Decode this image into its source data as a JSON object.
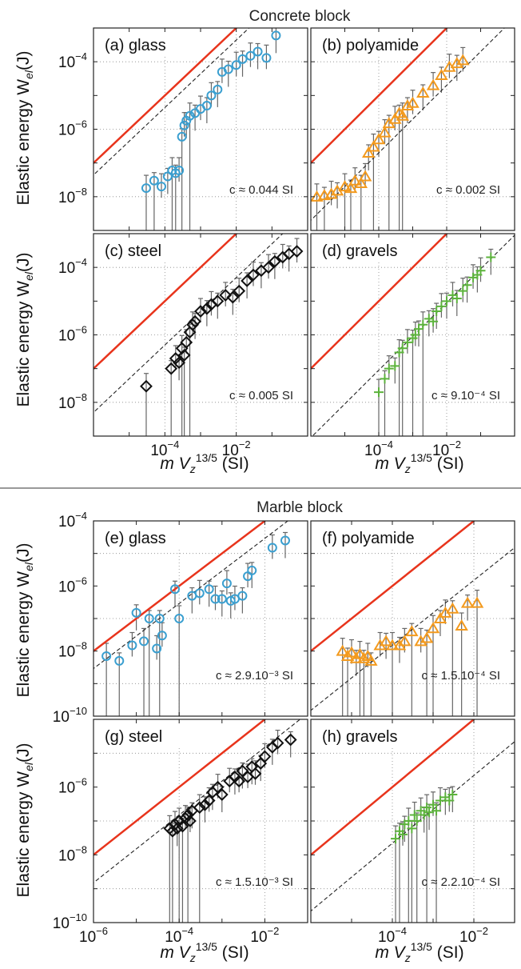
{
  "sections": [
    {
      "title": "Concrete block",
      "xlabel_main": "m V",
      "xlabel_sub": "z",
      "xlabel_sup": "13/5",
      "xlabel_unit": " (SI)"
    },
    {
      "title": "Marble block",
      "xlabel_main": "m V",
      "xlabel_sub": "z",
      "xlabel_sup": "13/5",
      "xlabel_unit": " (SI)"
    }
  ],
  "ylabel": {
    "main": "Elastic energy W",
    "sub": "el",
    "unit": "(J)"
  },
  "colors": {
    "fit_red": "#e8341c",
    "glass": "#3a9fd0",
    "polyamide": "#f39a1e",
    "steel": "#111111",
    "gravels": "#5cb33c",
    "error_bar": "#666666"
  },
  "chart_data": [
    {
      "panel": "(a) glass",
      "type": "scatter",
      "marker": "circle",
      "color": "#3a9fd0",
      "xlog": true,
      "ylog": true,
      "xlim": [
        1e-06,
        1
      ],
      "ylim": [
        1e-09,
        0.001
      ],
      "annotation": "c ≈ 0.044 SI",
      "red_line_prefactor": 0.1,
      "dashed_line_prefactor": 0.044,
      "points": [
        [
          3e-05,
          1.8e-08
        ],
        [
          5e-05,
          3e-08
        ],
        [
          8e-05,
          2e-08
        ],
        [
          0.00012,
          4e-08
        ],
        [
          0.00016,
          6e-08
        ],
        [
          0.0002,
          5e-08
        ],
        [
          0.00025,
          6e-08
        ],
        [
          0.0003,
          6e-07
        ],
        [
          0.00035,
          1.3e-06
        ],
        [
          0.0004,
          1.8e-06
        ],
        [
          0.0005,
          2.5e-06
        ],
        [
          0.0007,
          3e-06
        ],
        [
          0.001,
          4e-06
        ],
        [
          0.0015,
          5e-06
        ],
        [
          0.002,
          1e-05
        ],
        [
          0.003,
          1.5e-05
        ],
        [
          0.004,
          5e-05
        ],
        [
          0.006,
          6e-05
        ],
        [
          0.01,
          8e-05
        ],
        [
          0.015,
          0.00012
        ],
        [
          0.025,
          0.00015
        ],
        [
          0.04,
          0.0002
        ],
        [
          0.07,
          0.00013
        ],
        [
          0.13,
          0.0006
        ]
      ]
    },
    {
      "panel": "(b) polyamide",
      "type": "scatter",
      "marker": "triangle",
      "color": "#f39a1e",
      "xlog": true,
      "ylog": true,
      "xlim": [
        1e-06,
        1
      ],
      "ylim": [
        1e-09,
        0.001
      ],
      "annotation": "c ≈ 0.002 SI",
      "red_line_prefactor": 0.1,
      "dashed_line_prefactor": 0.002,
      "points": [
        [
          1.5e-06,
          1e-08
        ],
        [
          2.5e-06,
          1.1e-08
        ],
        [
          4e-06,
          1.2e-08
        ],
        [
          6e-06,
          1.5e-08
        ],
        [
          1e-05,
          2e-08
        ],
        [
          1.5e-05,
          1.8e-08
        ],
        [
          2e-05,
          3e-08
        ],
        [
          3e-05,
          2.5e-08
        ],
        [
          4e-05,
          4e-08
        ],
        [
          5e-05,
          2e-07
        ],
        [
          7e-05,
          3e-07
        ],
        [
          0.0001,
          5e-07
        ],
        [
          0.00015,
          8e-07
        ],
        [
          0.0002,
          1.5e-06
        ],
        [
          0.0003,
          2e-06
        ],
        [
          0.0004,
          3e-06
        ],
        [
          0.0005,
          2.5e-06
        ],
        [
          0.0007,
          5e-06
        ],
        [
          0.001,
          6e-06
        ],
        [
          0.002,
          1.2e-05
        ],
        [
          0.004,
          2e-05
        ],
        [
          0.007,
          4e-05
        ],
        [
          0.012,
          7e-05
        ],
        [
          0.02,
          9e-05
        ],
        [
          0.03,
          0.00011
        ]
      ]
    },
    {
      "panel": "(c) steel",
      "type": "scatter",
      "marker": "diamond",
      "color": "#111111",
      "xlog": true,
      "ylog": true,
      "xlim": [
        1e-06,
        1
      ],
      "ylim": [
        1e-09,
        0.001
      ],
      "annotation": "c ≈ 0.005 SI",
      "red_line_prefactor": 0.1,
      "dashed_line_prefactor": 0.005,
      "points": [
        [
          3e-05,
          3e-08
        ],
        [
          0.00015,
          1e-07
        ],
        [
          0.0002,
          2e-07
        ],
        [
          0.00025,
          1.5e-07
        ],
        [
          0.0003,
          4e-07
        ],
        [
          0.00035,
          2.5e-07
        ],
        [
          0.0004,
          6e-07
        ],
        [
          0.0005,
          1.2e-06
        ],
        [
          0.0006,
          2e-06
        ],
        [
          0.0007,
          2.5e-06
        ],
        [
          0.001,
          5e-06
        ],
        [
          0.0015,
          6e-06
        ],
        [
          0.002,
          8e-06
        ],
        [
          0.003,
          1e-05
        ],
        [
          0.005,
          1.5e-05
        ],
        [
          0.008,
          1.3e-05
        ],
        [
          0.012,
          2e-05
        ],
        [
          0.02,
          4e-05
        ],
        [
          0.03,
          6e-05
        ],
        [
          0.05,
          8e-05
        ],
        [
          0.08,
          0.0001
        ],
        [
          0.12,
          0.00015
        ],
        [
          0.2,
          0.0002
        ],
        [
          0.3,
          0.00025
        ],
        [
          0.5,
          0.0003
        ]
      ]
    },
    {
      "panel": "(d) gravels",
      "type": "scatter",
      "marker": "plus",
      "color": "#5cb33c",
      "xlog": true,
      "ylog": true,
      "xlim": [
        1e-06,
        1
      ],
      "ylim": [
        1e-09,
        0.001
      ],
      "annotation": "c ≈ 9.10⁻⁴ SI",
      "red_line_prefactor": 0.1,
      "dashed_line_prefactor": 0.0009,
      "points": [
        [
          0.0001,
          2e-08
        ],
        [
          0.00015,
          5e-08
        ],
        [
          0.0002,
          1e-07
        ],
        [
          0.0003,
          1.2e-07
        ],
        [
          0.0004,
          3e-07
        ],
        [
          0.0005,
          4e-07
        ],
        [
          0.0007,
          6e-07
        ],
        [
          0.001,
          8e-07
        ],
        [
          0.0012,
          1e-06
        ],
        [
          0.0015,
          1.5e-06
        ],
        [
          0.002,
          2e-06
        ],
        [
          0.003,
          3e-06
        ],
        [
          0.004,
          2.5e-06
        ],
        [
          0.005,
          5e-06
        ],
        [
          0.007,
          7e-06
        ],
        [
          0.01,
          1e-05
        ],
        [
          0.015,
          1.5e-05
        ],
        [
          0.02,
          1.2e-05
        ],
        [
          0.03,
          2e-05
        ],
        [
          0.04,
          3e-05
        ],
        [
          0.06,
          5e-05
        ],
        [
          0.08,
          6e-05
        ],
        [
          0.1,
          8e-05
        ],
        [
          0.2,
          0.0002
        ]
      ]
    },
    {
      "panel": "(e) glass",
      "type": "scatter",
      "marker": "circle",
      "color": "#3a9fd0",
      "xlog": true,
      "ylog": true,
      "xlim": [
        1e-06,
        0.1
      ],
      "ylim": [
        1e-10,
        0.0001
      ],
      "annotation": "c ≈ 2.9.10⁻³ SI",
      "red_line_prefactor": 0.01,
      "dashed_line_prefactor": 0.0029,
      "points": [
        [
          2e-06,
          7e-09
        ],
        [
          4e-06,
          5e-09
        ],
        [
          8e-06,
          1.5e-08
        ],
        [
          1e-05,
          1.5e-07
        ],
        [
          1.5e-05,
          2e-08
        ],
        [
          2e-05,
          1e-07
        ],
        [
          3e-05,
          1.2e-08
        ],
        [
          3.5e-05,
          1e-07
        ],
        [
          4e-05,
          3e-08
        ],
        [
          8e-05,
          8e-07
        ],
        [
          0.0001,
          1e-07
        ],
        [
          0.0002,
          5e-07
        ],
        [
          0.0003,
          6e-07
        ],
        [
          0.0005,
          8e-07
        ],
        [
          0.0007,
          4e-07
        ],
        [
          0.001,
          4e-07
        ],
        [
          0.0013,
          1.2e-06
        ],
        [
          0.0016,
          3.5e-07
        ],
        [
          0.002,
          4e-07
        ],
        [
          0.003,
          5e-07
        ],
        [
          0.004,
          2e-06
        ],
        [
          0.005,
          3e-06
        ],
        [
          0.015,
          1.5e-05
        ],
        [
          0.03,
          2.5e-05
        ]
      ]
    },
    {
      "panel": "(f) polyamide",
      "type": "scatter",
      "marker": "triangle",
      "color": "#f39a1e",
      "xlog": true,
      "ylog": true,
      "xlim": [
        1e-06,
        0.1
      ],
      "ylim": [
        1e-10,
        0.0001
      ],
      "annotation": "c ≈ 1.5.10⁻⁴ SI",
      "red_line_prefactor": 0.01,
      "dashed_line_prefactor": 0.00015,
      "points": [
        [
          6e-06,
          1e-08
        ],
        [
          8e-06,
          7e-09
        ],
        [
          1e-05,
          9e-09
        ],
        [
          1.3e-05,
          6e-09
        ],
        [
          1.6e-05,
          8e-09
        ],
        [
          2e-05,
          6e-09
        ],
        [
          2.5e-05,
          7e-09
        ],
        [
          3e-05,
          5e-09
        ],
        [
          5e-05,
          1.5e-08
        ],
        [
          7e-05,
          2e-08
        ],
        [
          0.0001,
          1.5e-08
        ],
        [
          0.00015,
          1.5e-08
        ],
        [
          0.0002,
          2e-08
        ],
        [
          0.0003,
          4e-08
        ],
        [
          0.0005,
          2e-08
        ],
        [
          0.0007,
          2.5e-08
        ],
        [
          0.001,
          5e-08
        ],
        [
          0.0015,
          1e-07
        ],
        [
          0.002,
          1.5e-07
        ],
        [
          0.003,
          2e-07
        ],
        [
          0.005,
          6e-08
        ],
        [
          0.007,
          3e-07
        ],
        [
          0.012,
          3e-07
        ]
      ]
    },
    {
      "panel": "(g) steel",
      "type": "scatter",
      "marker": "diamond",
      "color": "#111111",
      "xlog": true,
      "ylog": true,
      "xlim": [
        1e-06,
        0.1
      ],
      "ylim": [
        1e-10,
        0.0001
      ],
      "annotation": "c ≈ 1.5.10⁻³ SI",
      "red_line_prefactor": 0.01,
      "dashed_line_prefactor": 0.0015,
      "points": [
        [
          6e-05,
          6e-08
        ],
        [
          7e-05,
          5e-08
        ],
        [
          8e-05,
          8e-08
        ],
        [
          9e-05,
          6e-08
        ],
        [
          0.0001,
          1e-07
        ],
        [
          0.00012,
          7e-08
        ],
        [
          0.00014,
          1.2e-07
        ],
        [
          0.00016,
          1.5e-07
        ],
        [
          0.00018,
          1e-07
        ],
        [
          0.0002,
          2e-07
        ],
        [
          0.0003,
          2.5e-07
        ],
        [
          0.0004,
          3e-07
        ],
        [
          0.0005,
          4e-07
        ],
        [
          0.0006,
          7e-07
        ],
        [
          0.0008,
          1e-06
        ],
        [
          0.001,
          6e-07
        ],
        [
          0.0015,
          1.5e-06
        ],
        [
          0.002,
          2e-06
        ],
        [
          0.0025,
          1.5e-06
        ],
        [
          0.003,
          3e-06
        ],
        [
          0.004,
          2e-06
        ],
        [
          0.005,
          4e-06
        ],
        [
          0.006,
          2.5e-06
        ],
        [
          0.008,
          5e-06
        ],
        [
          0.01,
          8e-06
        ],
        [
          0.015,
          1.5e-05
        ],
        [
          0.02,
          2e-05
        ],
        [
          0.04,
          2.5e-05
        ]
      ]
    },
    {
      "panel": "(h) gravels",
      "type": "scatter",
      "marker": "plus",
      "color": "#5cb33c",
      "xlog": true,
      "ylog": true,
      "xlim": [
        1e-06,
        0.1
      ],
      "ylim": [
        1e-10,
        0.0001
      ],
      "annotation": "c ≈ 2.2.10⁻⁴ SI",
      "red_line_prefactor": 0.01,
      "dashed_line_prefactor": 0.00022,
      "points": [
        [
          0.00012,
          3e-08
        ],
        [
          0.00015,
          5e-08
        ],
        [
          0.00018,
          4e-08
        ],
        [
          0.0002,
          8e-08
        ],
        [
          0.00025,
          1e-07
        ],
        [
          0.0003,
          6e-08
        ],
        [
          0.00035,
          1.5e-07
        ],
        [
          0.0004,
          1e-07
        ],
        [
          0.0005,
          2e-07
        ],
        [
          0.0006,
          1.5e-07
        ],
        [
          0.0007,
          2.5e-07
        ],
        [
          0.0008,
          1.8e-07
        ],
        [
          0.001,
          3e-07
        ],
        [
          0.0012,
          2e-07
        ],
        [
          0.0015,
          4e-07
        ],
        [
          0.002,
          5e-07
        ],
        [
          0.0025,
          4e-07
        ],
        [
          0.003,
          6e-07
        ]
      ]
    }
  ]
}
